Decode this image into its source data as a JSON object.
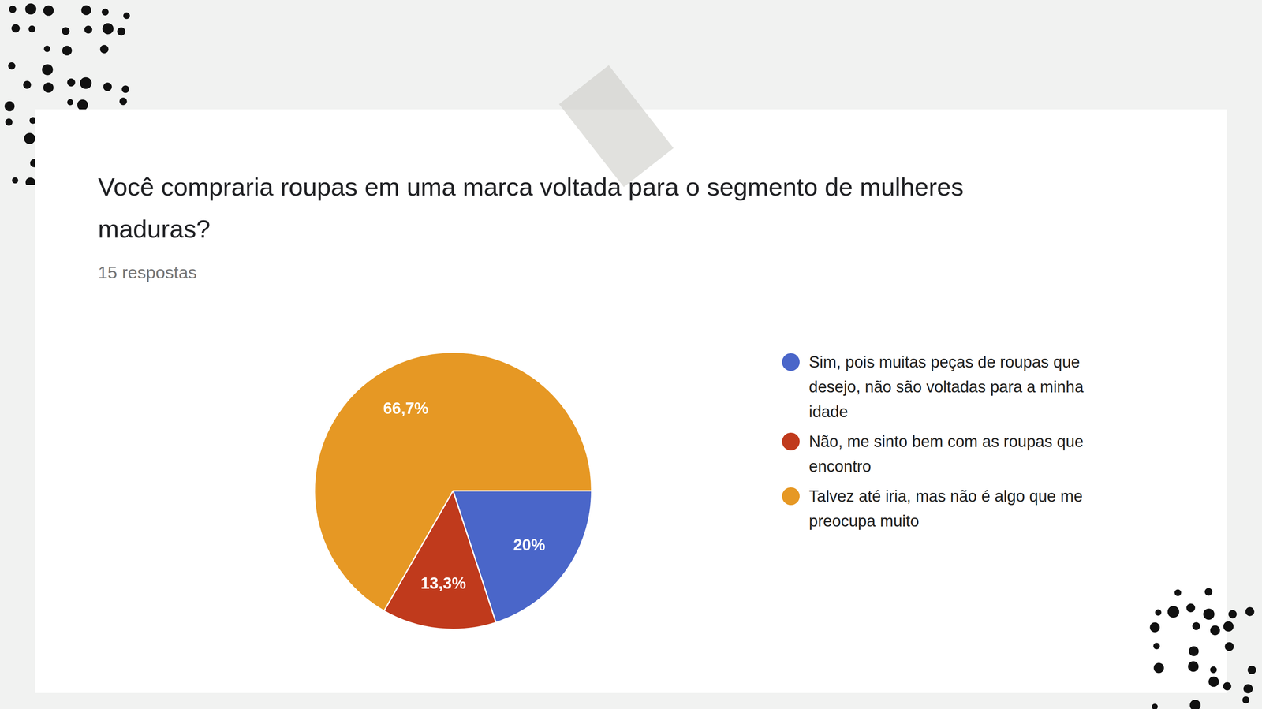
{
  "chart_data": {
    "type": "pie",
    "title": "Você compraria roupas em uma marca voltada para o segmento de mulheres maduras?",
    "subtitle": "15 respostas",
    "categories": [
      "Sim, pois muitas peças de roupas que desejo, não são voltadas para a minha idade",
      "Não, me sinto bem com as roupas que encontro",
      "Talvez até iria, mas não é algo que me preocupa muito"
    ],
    "values": [
      20,
      13.3,
      66.7
    ],
    "value_labels": [
      "20%",
      "13,3%",
      "66,7%"
    ],
    "colors": [
      "#4a66c9",
      "#c03a1c",
      "#e69824"
    ],
    "legend": "right",
    "data_labels": true
  }
}
